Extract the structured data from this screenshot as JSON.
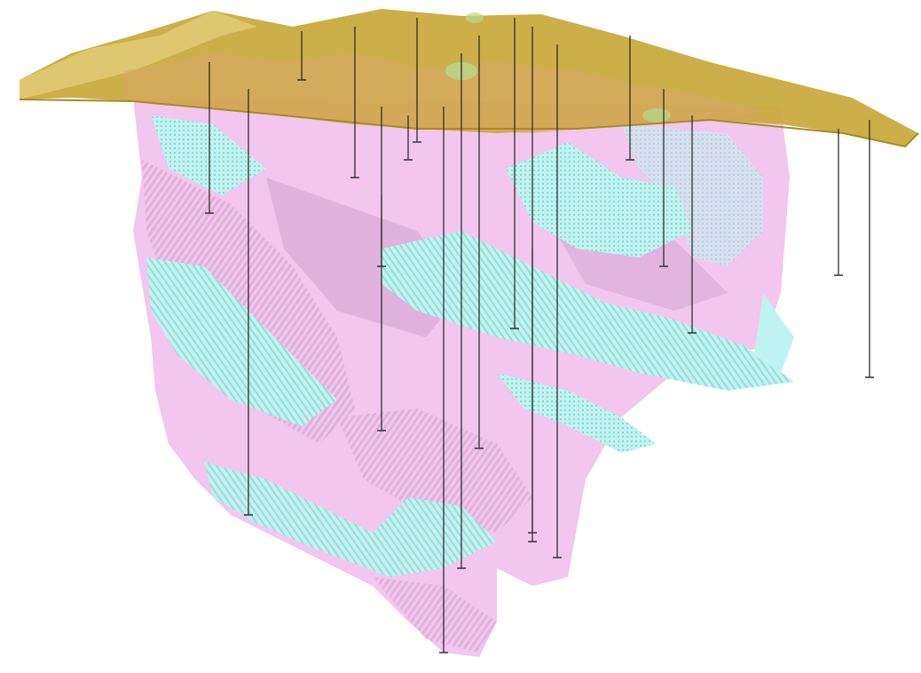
{
  "scene": {
    "description_free": true,
    "colors": {
      "background": "#ffffff",
      "topography": "#c9a83a",
      "topography_light": "#e3cd7a",
      "topography_shadow": "#a88a22",
      "unit_pink": "#f2c6ee",
      "unit_mauve": "#c99ac7",
      "unit_cyan": "#bff3f2",
      "unit_teal": "#7fcac8",
      "drillhole": "#222222",
      "drillhole_cap": "#333333",
      "patch_green": "#b8d98a"
    },
    "layers": [
      {
        "id": "topography-surface",
        "label": ""
      },
      {
        "id": "geology-pink-unit",
        "label": ""
      },
      {
        "id": "geology-cyan-unit",
        "label": ""
      },
      {
        "id": "drillholes",
        "label": ""
      }
    ]
  }
}
